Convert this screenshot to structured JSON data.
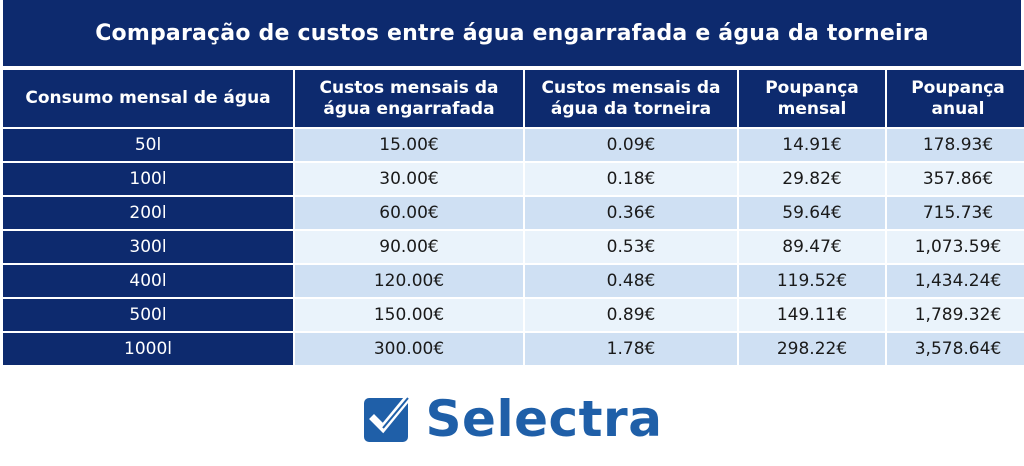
{
  "title": "Comparação de custos entre água engarrafada e água da torneira",
  "table": {
    "headers": [
      "Consumo mensal de água",
      "Custos mensais da água engarrafada",
      "Custos mensais da água da torneira",
      "Poupança mensal",
      "Poupança anual"
    ],
    "rows": [
      [
        "50l",
        "15.00€",
        "0.09€",
        "14.91€",
        "178.93€"
      ],
      [
        "100l",
        "30.00€",
        "0.18€",
        "29.82€",
        "357.86€"
      ],
      [
        "200l",
        "60.00€",
        "0.36€",
        "59.64€",
        "715.73€"
      ],
      [
        "300l",
        "90.00€",
        "0.53€",
        "89.47€",
        "1,073.59€"
      ],
      [
        "400l",
        "120.00€",
        "0.48€",
        "119.52€",
        "1,434.24€"
      ],
      [
        "500l",
        "150.00€",
        "0.89€",
        "149.11€",
        "1,789.32€"
      ],
      [
        "1000l",
        "300.00€",
        "1.78€",
        "298.22€",
        "3,578.64€"
      ]
    ]
  },
  "logo": {
    "text": "Selectra",
    "icon": "checkmark-box-icon"
  },
  "colors": {
    "header_bg": "#0d2a6e",
    "row_odd": "#cfe0f3",
    "row_even": "#eaf3fb",
    "brand": "#1f5fa8"
  }
}
